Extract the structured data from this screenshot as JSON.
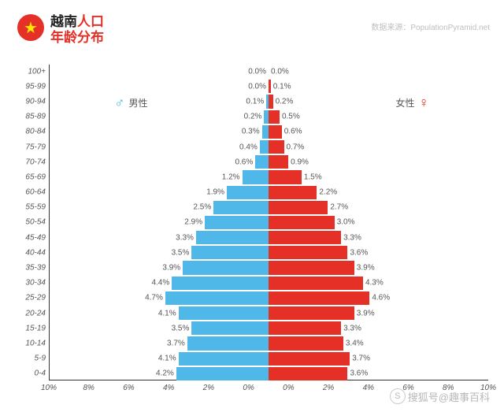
{
  "header": {
    "title_part1": "越南",
    "title_part2": "人口",
    "title_line2": "年龄分布",
    "flag_color": "#e53027",
    "star_color": "#ffe600"
  },
  "source": {
    "label": "数据来源：",
    "value": "PopulationPyramid.net"
  },
  "legend": {
    "male": {
      "label": "男性",
      "symbol": "♂",
      "color": "#4fb8e8"
    },
    "female": {
      "label": "女性",
      "symbol": "♀",
      "color": "#e53027"
    }
  },
  "chart": {
    "type": "population-pyramid",
    "x_max_percent": 10,
    "x_ticks": [
      "10%",
      "8%",
      "6%",
      "4%",
      "2%",
      "0%",
      "0%",
      "2%",
      "4%",
      "6%",
      "8%",
      "10%"
    ],
    "male_bar_color": "#4fb8e8",
    "female_bar_color": "#e53027",
    "background_color": "#ffffff",
    "axis_color": "#333333",
    "label_color": "#555555",
    "ylabel_fontsize": 10,
    "value_fontsize": 10,
    "rows": [
      {
        "age": "100+",
        "m": 0.0,
        "f": 0.0,
        "ml": "0.0%",
        "fl": "0.0%"
      },
      {
        "age": "95-99",
        "m": 0.0,
        "f": 0.1,
        "ml": "0.0%",
        "fl": "0.1%"
      },
      {
        "age": "90-94",
        "m": 0.1,
        "f": 0.2,
        "ml": "0.1%",
        "fl": "0.2%"
      },
      {
        "age": "85-89",
        "m": 0.2,
        "f": 0.5,
        "ml": "0.2%",
        "fl": "0.5%"
      },
      {
        "age": "80-84",
        "m": 0.3,
        "f": 0.6,
        "ml": "0.3%",
        "fl": "0.6%"
      },
      {
        "age": "75-79",
        "m": 0.4,
        "f": 0.7,
        "ml": "0.4%",
        "fl": "0.7%"
      },
      {
        "age": "70-74",
        "m": 0.6,
        "f": 0.9,
        "ml": "0.6%",
        "fl": "0.9%"
      },
      {
        "age": "65-69",
        "m": 1.2,
        "f": 1.5,
        "ml": "1.2%",
        "fl": "1.5%"
      },
      {
        "age": "60-64",
        "m": 1.9,
        "f": 2.2,
        "ml": "1.9%",
        "fl": "2.2%"
      },
      {
        "age": "55-59",
        "m": 2.5,
        "f": 2.7,
        "ml": "2.5%",
        "fl": "2.7%"
      },
      {
        "age": "50-54",
        "m": 2.9,
        "f": 3.0,
        "ml": "2.9%",
        "fl": "3.0%"
      },
      {
        "age": "45-49",
        "m": 3.3,
        "f": 3.3,
        "ml": "3.3%",
        "fl": "3.3%"
      },
      {
        "age": "40-44",
        "m": 3.5,
        "f": 3.6,
        "ml": "3.5%",
        "fl": "3.6%"
      },
      {
        "age": "35-39",
        "m": 3.9,
        "f": 3.9,
        "ml": "3.9%",
        "fl": "3.9%"
      },
      {
        "age": "30-34",
        "m": 4.4,
        "f": 4.3,
        "ml": "4.4%",
        "fl": "4.3%"
      },
      {
        "age": "25-29",
        "m": 4.7,
        "f": 4.6,
        "ml": "4.7%",
        "fl": "4.6%"
      },
      {
        "age": "20-24",
        "m": 4.1,
        "f": 3.9,
        "ml": "4.1%",
        "fl": "3.9%"
      },
      {
        "age": "15-19",
        "m": 3.5,
        "f": 3.3,
        "ml": "3.5%",
        "fl": "3.3%"
      },
      {
        "age": "10-14",
        "m": 3.7,
        "f": 3.4,
        "ml": "3.7%",
        "fl": "3.4%"
      },
      {
        "age": "5-9",
        "m": 4.1,
        "f": 3.7,
        "ml": "4.1%",
        "fl": "3.7%"
      },
      {
        "age": "0-4",
        "m": 4.2,
        "f": 3.6,
        "ml": "4.2%",
        "fl": "3.6%"
      }
    ]
  },
  "watermark": {
    "site": "搜狐号",
    "sep": "@",
    "author": "趣事百科",
    "logo_text": "S"
  }
}
